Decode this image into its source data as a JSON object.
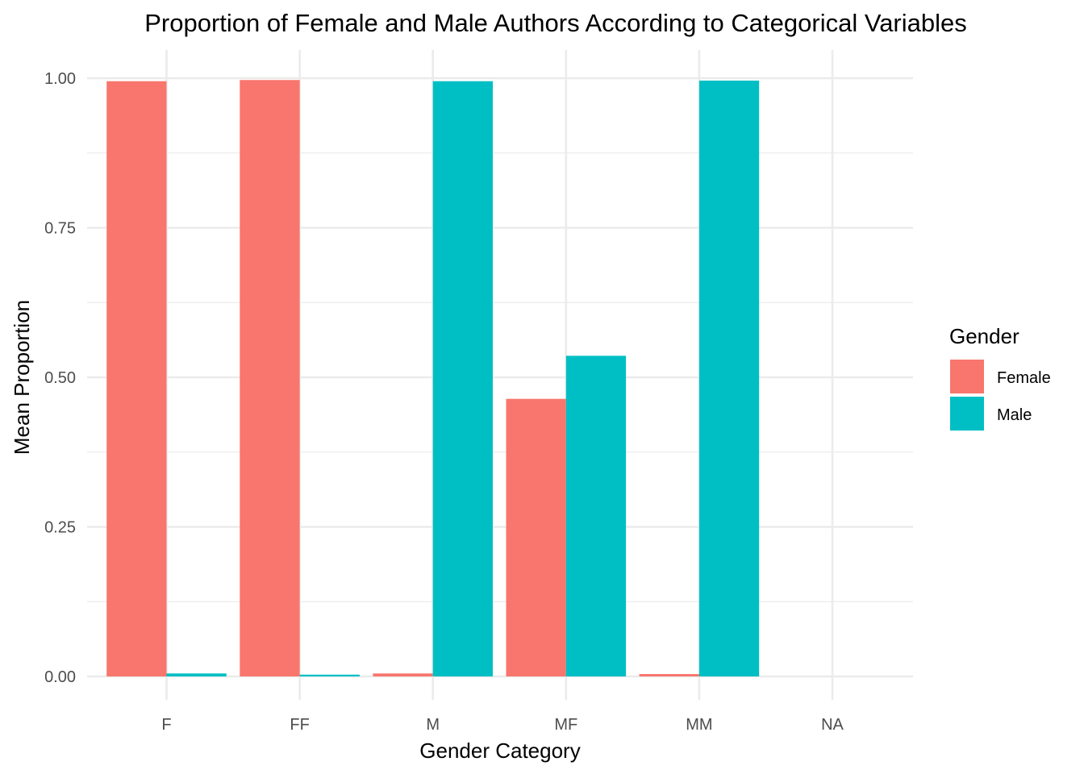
{
  "chart_data": {
    "type": "bar",
    "title": "Proportion of Female and Male Authors According to Categorical Variables",
    "xlabel": "Gender Category",
    "ylabel": "Mean Proportion",
    "categories": [
      "F",
      "FF",
      "M",
      "MF",
      "MM",
      "NA"
    ],
    "series": [
      {
        "name": "Female",
        "color": "#F8766D",
        "values": [
          0.995,
          0.997,
          0.005,
          0.464,
          0.004,
          null
        ]
      },
      {
        "name": "Male",
        "color": "#00BFC4",
        "values": [
          0.005,
          0.003,
          0.995,
          0.536,
          0.996,
          null
        ]
      }
    ],
    "ylim": [
      0,
      1
    ],
    "yticks": [
      0,
      0.25,
      0.5,
      0.75,
      1.0
    ],
    "ytick_labels": [
      "0.00",
      "0.25",
      "0.50",
      "0.75",
      "1.00"
    ],
    "grid": true,
    "legend": {
      "title": "Gender",
      "position": "right"
    }
  }
}
